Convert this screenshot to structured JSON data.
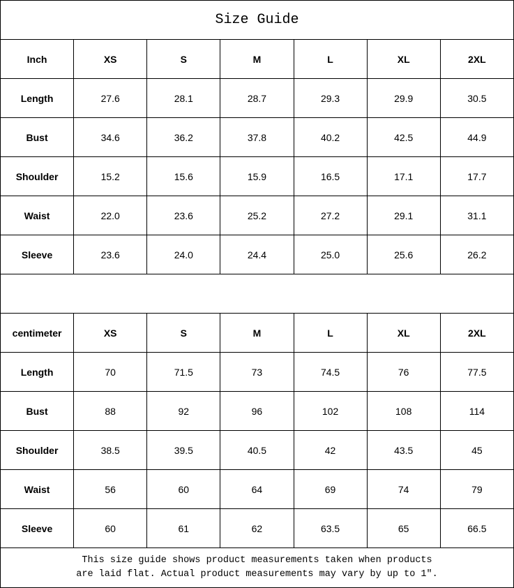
{
  "title": "Size Guide",
  "sizes": [
    "XS",
    "S",
    "M",
    "L",
    "XL",
    "2XL"
  ],
  "inch": {
    "unit_label": "Inch",
    "rows": [
      {
        "label": "Length",
        "values": [
          "27.6",
          "28.1",
          "28.7",
          "29.3",
          "29.9",
          "30.5"
        ]
      },
      {
        "label": "Bust",
        "values": [
          "34.6",
          "36.2",
          "37.8",
          "40.2",
          "42.5",
          "44.9"
        ]
      },
      {
        "label": "Shoulder",
        "values": [
          "15.2",
          "15.6",
          "15.9",
          "16.5",
          "17.1",
          "17.7"
        ]
      },
      {
        "label": "Waist",
        "values": [
          "22.0",
          "23.6",
          "25.2",
          "27.2",
          "29.1",
          "31.1"
        ]
      },
      {
        "label": "Sleeve",
        "values": [
          "23.6",
          "24.0",
          "24.4",
          "25.0",
          "25.6",
          "26.2"
        ]
      }
    ]
  },
  "centimeter": {
    "unit_label": "centimeter",
    "rows": [
      {
        "label": "Length",
        "values": [
          "70",
          "71.5",
          "73",
          "74.5",
          "76",
          "77.5"
        ]
      },
      {
        "label": "Bust",
        "values": [
          "88",
          "92",
          "96",
          "102",
          "108",
          "114"
        ]
      },
      {
        "label": "Shoulder",
        "values": [
          "38.5",
          "39.5",
          "40.5",
          "42",
          "43.5",
          "45"
        ]
      },
      {
        "label": "Waist",
        "values": [
          "56",
          "60",
          "64",
          "69",
          "74",
          "79"
        ]
      },
      {
        "label": "Sleeve",
        "values": [
          "60",
          "61",
          "62",
          "63.5",
          "65",
          "66.5"
        ]
      }
    ]
  },
  "footer": {
    "line1": "This size guide shows product measurements taken when products",
    "line2": "are laid flat. Actual product measurements may vary by up to 1″."
  }
}
